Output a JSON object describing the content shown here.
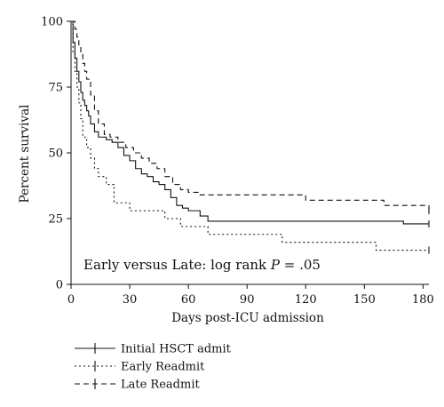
{
  "chart_data": {
    "type": "line",
    "title": "",
    "xlabel": "Days post-ICU admission",
    "ylabel": "Percent survival",
    "xlim": [
      0,
      183
    ],
    "ylim": [
      0,
      100
    ],
    "xticks": [
      0,
      30,
      60,
      90,
      120,
      150,
      180
    ],
    "yticks": [
      0,
      25,
      50,
      75,
      100
    ],
    "grid": false,
    "legend_position": "bottom-left",
    "annotation": {
      "prefix": "Early versus Late: log rank ",
      "italic": "P",
      "suffix": " = .05"
    },
    "series": [
      {
        "name": "Initial HSCT admit",
        "style": "solid",
        "color": "#111111",
        "censored_at": 183,
        "x": [
          0,
          1,
          2,
          3,
          4,
          5,
          6,
          7,
          8,
          9,
          10,
          12,
          14,
          16,
          18,
          21,
          24,
          27,
          30,
          33,
          36,
          39,
          42,
          45,
          48,
          51,
          54,
          57,
          60,
          66,
          70,
          100,
          130,
          150,
          170,
          183
        ],
        "y": [
          100,
          92,
          86,
          81,
          77,
          73,
          70,
          68,
          66,
          64,
          61,
          58,
          56,
          56,
          55,
          54,
          52,
          49,
          47,
          44,
          42,
          41,
          39,
          38,
          36,
          33,
          30,
          29,
          28,
          26,
          24,
          24,
          24,
          24,
          23,
          23
        ]
      },
      {
        "name": "Early Readmit",
        "style": "dotted",
        "color": "#111111",
        "censored_at": 183,
        "x": [
          0,
          1,
          2,
          3,
          4,
          5,
          6,
          8,
          10,
          12,
          14,
          18,
          22,
          30,
          42,
          48,
          56,
          70,
          108,
          125,
          156,
          183
        ],
        "y": [
          100,
          88,
          81,
          75,
          69,
          63,
          56,
          52,
          48,
          44,
          41,
          38,
          31,
          28,
          28,
          25,
          22,
          19,
          16,
          16,
          13,
          13
        ]
      },
      {
        "name": "Late Readmit",
        "style": "dashed",
        "color": "#111111",
        "censored_at": 183,
        "x": [
          0,
          2,
          3,
          4,
          5,
          6,
          7,
          8,
          10,
          12,
          14,
          17,
          20,
          24,
          28,
          32,
          36,
          40,
          44,
          48,
          52,
          56,
          60,
          66,
          80,
          100,
          120,
          140,
          160,
          183
        ],
        "y": [
          100,
          97,
          94,
          91,
          88,
          84,
          81,
          78,
          72,
          66,
          61,
          57,
          56,
          54,
          52,
          50,
          48,
          46,
          44,
          41,
          38,
          36,
          35,
          34,
          34,
          34,
          32,
          32,
          30,
          28
        ]
      }
    ]
  }
}
